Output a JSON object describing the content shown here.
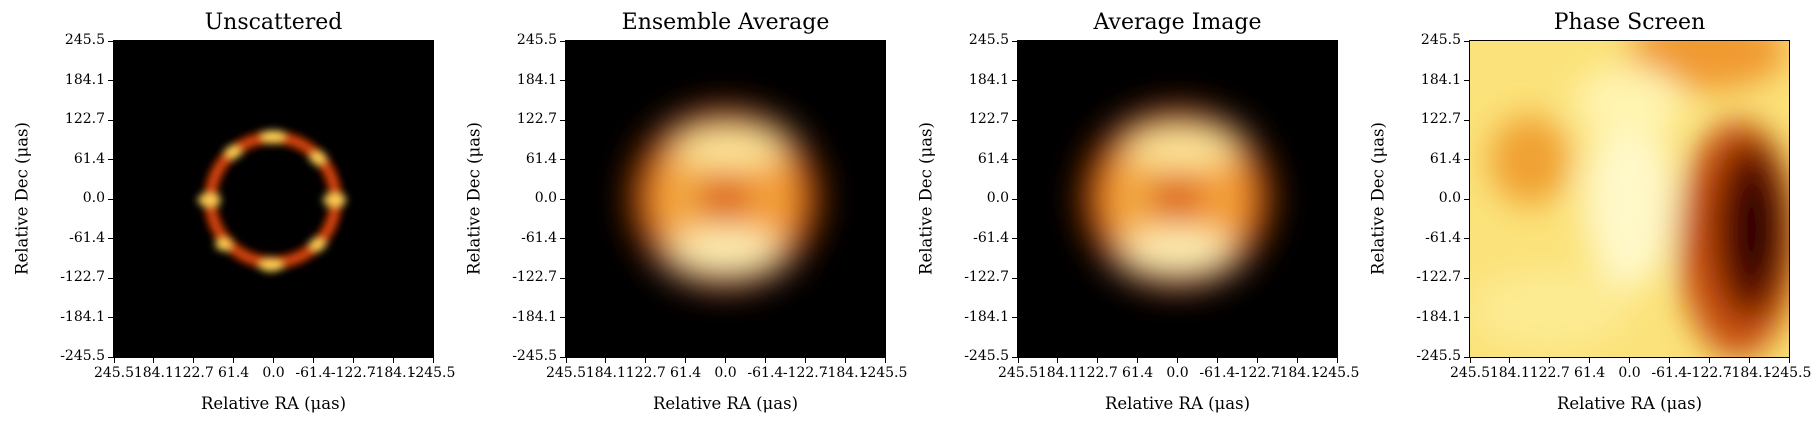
{
  "colors": {
    "map_low": "#000000",
    "map_mid": "#e8620a",
    "map_high": "#ffffb0"
  },
  "chart_data": [
    {
      "type": "heatmap",
      "title": "Unscattered",
      "xlabel": "Relative RA ($\\mu$as)",
      "ylabel": "Relative Dec ($\\mu$as)",
      "colormap": "afmhot",
      "xlim": [
        245.5,
        -245.5
      ],
      "ylim": [
        -245.5,
        245.5
      ],
      "xticks": [
        "245.5",
        "184.1",
        "122.7",
        "61.4",
        "0.0",
        "-61.4",
        "-122.7",
        "-184.1",
        "-245.5"
      ],
      "yticks": [
        "245.5",
        "184.1",
        "122.7",
        "61.4",
        "0.0",
        "-61.4",
        "-122.7",
        "-184.1",
        "-245.5"
      ],
      "content": "thin bright ring, radius about 110 μas, clumpy"
    },
    {
      "type": "heatmap",
      "title": "Ensemble Average",
      "xlabel": "Relative RA ($\\mu$as)",
      "ylabel": "Relative Dec ($\\mu$as)",
      "colormap": "afmhot",
      "xlim": [
        245.5,
        -245.5
      ],
      "ylim": [
        -245.5,
        245.5
      ],
      "xticks": [
        "245.5",
        "184.1",
        "122.7",
        "61.4",
        "0.0",
        "-61.4",
        "-122.7",
        "-184.1",
        "-245.5"
      ],
      "yticks": [
        "245.5",
        "184.1",
        "122.7",
        "61.4",
        "0.0",
        "-61.4",
        "-122.7",
        "-184.1",
        "-245.5"
      ],
      "content": "blurred ring, brightest at top and bottom"
    },
    {
      "type": "heatmap",
      "title": "Average Image",
      "xlabel": "Relative RA ($\\mu$as)",
      "ylabel": "Relative Dec ($\\mu$as)",
      "colormap": "afmhot",
      "xlim": [
        245.5,
        -245.5
      ],
      "ylim": [
        -245.5,
        245.5
      ],
      "xticks": [
        "245.5",
        "184.1",
        "122.7",
        "61.4",
        "0.0",
        "-61.4",
        "-122.7",
        "-184.1",
        "-245.5"
      ],
      "yticks": [
        "245.5",
        "184.1",
        "122.7",
        "61.4",
        "0.0",
        "-61.4",
        "-122.7",
        "-184.1",
        "-245.5"
      ],
      "content": "blurred ring, brightest at top and bottom"
    },
    {
      "type": "heatmap",
      "title": "Phase Screen",
      "xlabel": "Relative RA ($\\mu$as)",
      "ylabel": "Relative Dec ($\\mu$as)",
      "colormap": "afmhot",
      "xlim": [
        245.5,
        -245.5
      ],
      "ylim": [
        -245.5,
        245.5
      ],
      "xticks": [
        "245.5",
        "184.1",
        "122.7",
        "61.4",
        "0.0",
        "-61.4",
        "-122.7",
        "-184.1",
        "-245.5"
      ],
      "yticks": [
        "245.5",
        "184.1",
        "122.7",
        "61.4",
        "0.0",
        "-61.4",
        "-122.7",
        "-184.1",
        "-245.5"
      ],
      "content": "smooth yellow/orange field with dark crescent on right side"
    }
  ]
}
